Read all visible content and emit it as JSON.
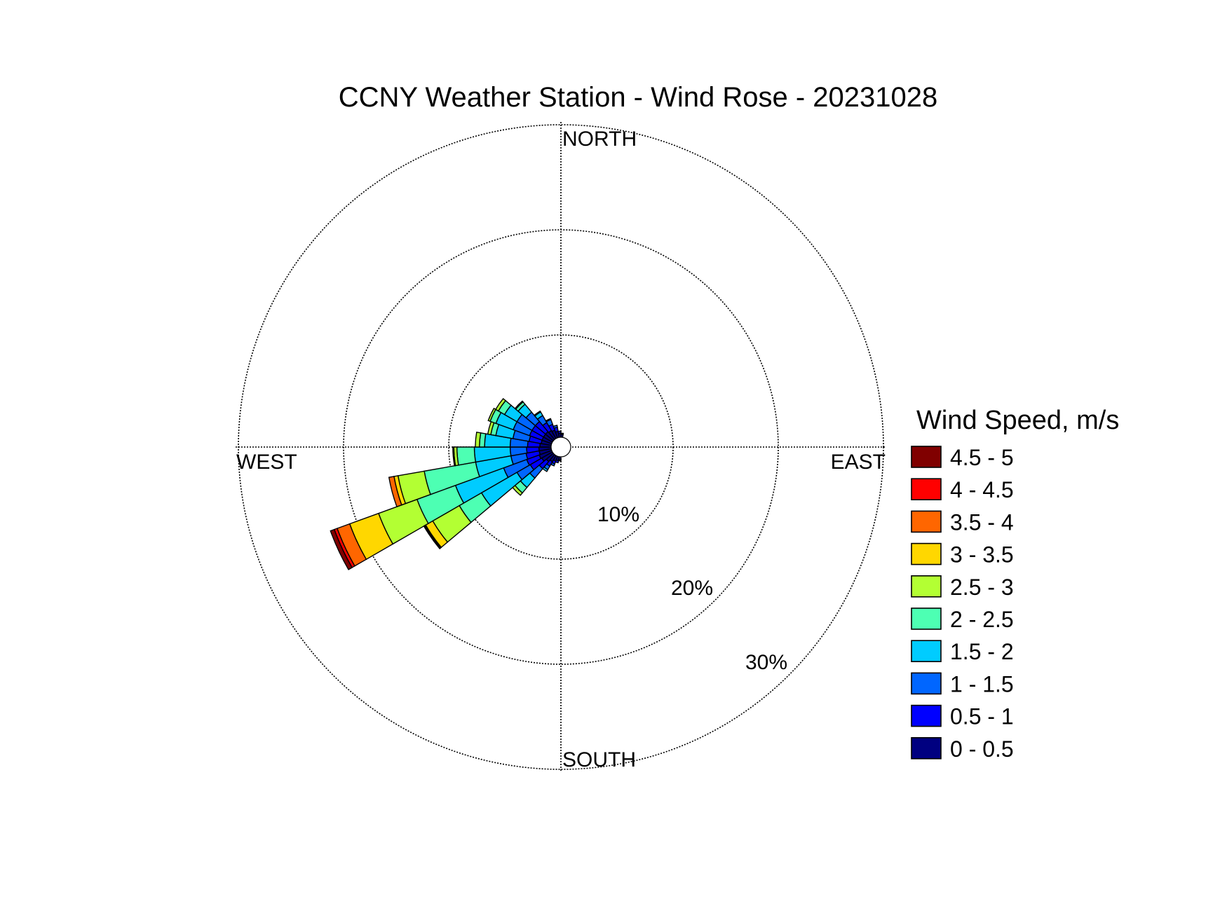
{
  "chart_data": {
    "type": "wind-rose",
    "title": "CCNY Weather Station - Wind Rose - 20231028",
    "directions": [
      "NORTH",
      "EAST",
      "SOUTH",
      "WEST"
    ],
    "rings": [
      {
        "value": 10,
        "label": "10%"
      },
      {
        "value": 20,
        "label": "20%"
      },
      {
        "value": 30,
        "label": "30%"
      }
    ],
    "rmax": 31,
    "legend": {
      "title": "Wind Speed, m/s",
      "bins": [
        {
          "label": "0 - 0.5",
          "color": "#000080"
        },
        {
          "label": "0.5 - 1",
          "color": "#0000ff"
        },
        {
          "label": "1 - 1.5",
          "color": "#0066ff"
        },
        {
          "label": "1.5 - 2",
          "color": "#00ccff"
        },
        {
          "label": "2 - 2.5",
          "color": "#4dffb3"
        },
        {
          "label": "2.5 - 3",
          "color": "#b3ff33"
        },
        {
          "label": "3 - 3.5",
          "color": "#ffd700"
        },
        {
          "label": "3.5 - 4",
          "color": "#ff6600"
        },
        {
          "label": "4 - 4.5",
          "color": "#ff0000"
        },
        {
          "label": "4.5 - 5",
          "color": "#800000"
        }
      ]
    },
    "sector_width_deg": 10,
    "sectors": [
      {
        "direction_deg": 245,
        "cumulative_percent": [
          1.3,
          2.6,
          5.0,
          10.0,
          14.0,
          18.0,
          21.0,
          22.3,
          22.6,
          23.0
        ]
      },
      {
        "direction_deg": 255,
        "cumulative_percent": [
          1.2,
          2.5,
          4.0,
          7.5,
          12.6,
          15.2,
          15.6,
          16.1,
          16.1,
          16.1
        ]
      },
      {
        "direction_deg": 235,
        "cumulative_percent": [
          1.2,
          2.5,
          4.0,
          8.0,
          10.5,
          13.5,
          14.3,
          14.4,
          14.4,
          14.5
        ]
      },
      {
        "direction_deg": 265,
        "cumulative_percent": [
          1.2,
          2.4,
          4.0,
          7.5,
          9.2,
          9.5,
          9.6,
          9.6,
          9.6,
          9.6
        ]
      },
      {
        "direction_deg": 275,
        "cumulative_percent": [
          1.1,
          2.3,
          4.0,
          6.5,
          7.0,
          7.4,
          7.4,
          7.4,
          7.4,
          7.4
        ]
      },
      {
        "direction_deg": 285,
        "cumulative_percent": [
          1.0,
          2.2,
          3.8,
          5.5,
          6.0,
          6.3,
          6.3,
          6.3,
          6.3,
          6.3
        ]
      },
      {
        "direction_deg": 295,
        "cumulative_percent": [
          1.0,
          2.3,
          4.0,
          5.8,
          6.4,
          6.6,
          6.6,
          6.6,
          6.6,
          6.6
        ]
      },
      {
        "direction_deg": 305,
        "cumulative_percent": [
          1.0,
          2.3,
          4.0,
          5.4,
          6.1,
          6.4,
          6.4,
          6.4,
          6.4,
          6.4
        ]
      },
      {
        "direction_deg": 315,
        "cumulative_percent": [
          1.0,
          2.3,
          3.5,
          4.5,
          4.8,
          4.9,
          4.9,
          4.9,
          4.9,
          4.9
        ]
      },
      {
        "direction_deg": 325,
        "cumulative_percent": [
          0.9,
          1.8,
          2.6,
          3.0,
          3.1,
          3.1,
          3.1,
          3.1,
          3.1,
          3.1
        ]
      },
      {
        "direction_deg": 335,
        "cumulative_percent": [
          0.8,
          1.4,
          1.9,
          2.0,
          2.0,
          2.0,
          2.0,
          2.0,
          2.0,
          2.0
        ]
      },
      {
        "direction_deg": 345,
        "cumulative_percent": [
          0.6,
          1.0,
          1.2,
          1.2,
          1.2,
          1.2,
          1.2,
          1.2,
          1.2,
          1.2
        ]
      },
      {
        "direction_deg": 225,
        "cumulative_percent": [
          0.9,
          1.8,
          3.0,
          4.2,
          4.9,
          5.2,
          5.2,
          5.2,
          5.2,
          5.2
        ]
      },
      {
        "direction_deg": 215,
        "cumulative_percent": [
          0.7,
          1.2,
          1.6,
          1.8,
          1.8,
          1.8,
          1.8,
          1.8,
          1.8,
          1.8
        ]
      },
      {
        "direction_deg": 205,
        "cumulative_percent": [
          0.5,
          0.8,
          1.0,
          1.0,
          1.0,
          1.0,
          1.0,
          1.0,
          1.0,
          1.0
        ]
      },
      {
        "direction_deg": 195,
        "cumulative_percent": [
          0.4,
          0.6,
          0.6,
          0.6,
          0.6,
          0.6,
          0.6,
          0.6,
          0.6,
          0.6
        ]
      },
      {
        "direction_deg": 355,
        "cumulative_percent": [
          0.4,
          0.6,
          0.6,
          0.6,
          0.6,
          0.6,
          0.6,
          0.6,
          0.6,
          0.6
        ]
      },
      {
        "direction_deg": 5,
        "cumulative_percent": [
          0.3,
          0.4,
          0.4,
          0.4,
          0.4,
          0.4,
          0.4,
          0.4,
          0.4,
          0.4
        ]
      },
      {
        "direction_deg": 185,
        "cumulative_percent": [
          0.3,
          0.4,
          0.4,
          0.4,
          0.4,
          0.4,
          0.4,
          0.4,
          0.4,
          0.4
        ]
      }
    ],
    "grid": true
  }
}
